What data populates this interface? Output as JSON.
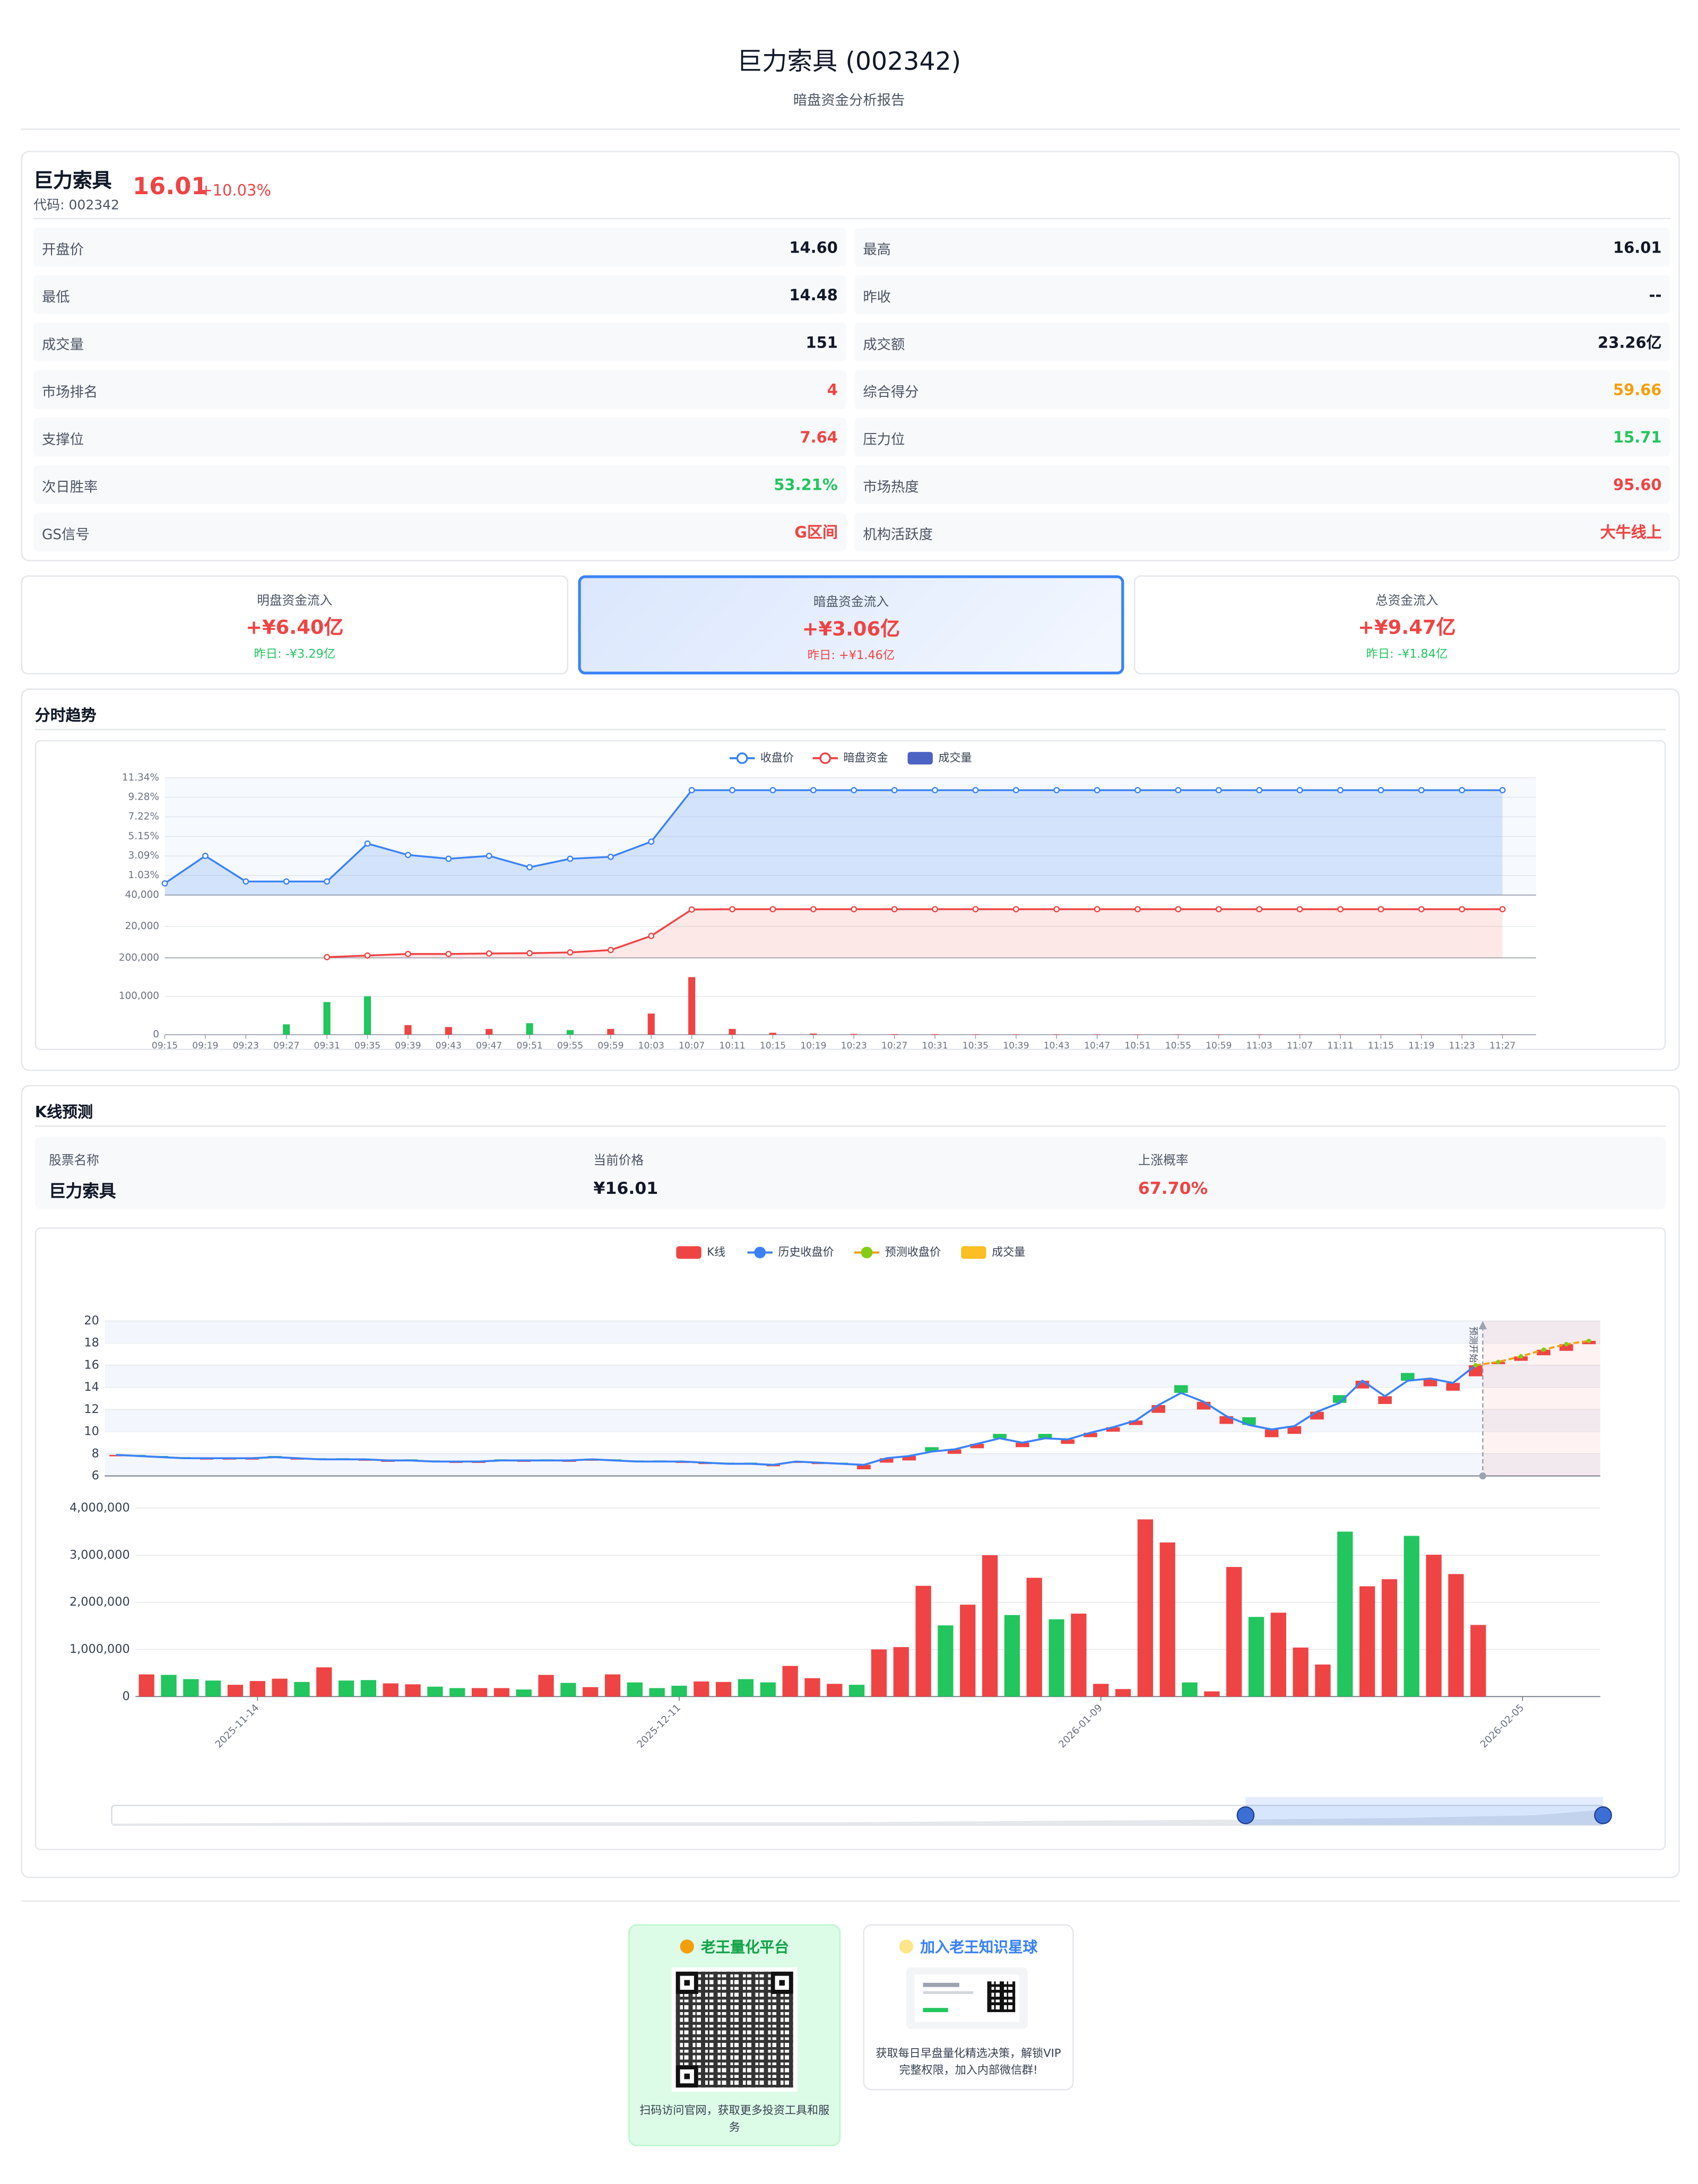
{
  "header": {
    "title": "巨力索具 (002342)",
    "subtitle": "暗盘资金分析报告"
  },
  "quote": {
    "name": "巨力索具",
    "code": "代码: 002342",
    "price": "16.01",
    "change": "+10.03%",
    "color": "#ef4444"
  },
  "metrics": [
    {
      "label": "开盘价",
      "value": "14.60"
    },
    {
      "label": "最高",
      "value": "16.01"
    },
    {
      "label": "最低",
      "value": "14.48"
    },
    {
      "label": "昨收",
      "value": "--"
    },
    {
      "label": "成交量",
      "value": "151"
    },
    {
      "label": "成交额",
      "value": "23.26亿"
    },
    {
      "label": "市场排名",
      "value": "4",
      "color": "#ef4444"
    },
    {
      "label": "综合得分",
      "value": "59.66",
      "color": "#f59e0b"
    },
    {
      "label": "支撑位",
      "value": "7.64",
      "color": "#ef4444"
    },
    {
      "label": "压力位",
      "value": "15.71",
      "color": "#22c55e"
    },
    {
      "label": "次日胜率",
      "value": "53.21%",
      "color": "#22c55e"
    },
    {
      "label": "市场热度",
      "value": "95.60",
      "color": "#ef4444"
    },
    {
      "label": "GS信号",
      "value": "G区间",
      "color": "#ef4444"
    },
    {
      "label": "机构活跃度",
      "value": "大牛线上",
      "color": "#ef4444"
    }
  ],
  "flows": [
    {
      "title": "明盘资金流入",
      "value": "+¥6.40亿",
      "previous": "昨日: -¥3.29亿",
      "color": "#ef4444",
      "previous_color": "#22c55e",
      "highlighted": false
    },
    {
      "title": "暗盘资金流入",
      "value": "+¥3.06亿",
      "previous": "昨日: +¥1.46亿",
      "color": "#ef4444",
      "previous_color": "#ef4444",
      "highlighted": true
    },
    {
      "title": "总资金流入",
      "value": "+¥9.47亿",
      "previous": "昨日: -¥1.84亿",
      "color": "#ef4444",
      "previous_color": "#22c55e",
      "highlighted": false
    }
  ],
  "kline_info": [
    {
      "label": "股票名称",
      "value": "巨力索具"
    },
    {
      "label": "当前价格",
      "value": "¥16.01"
    },
    {
      "label": "上涨概率",
      "value": "67.70%",
      "color": "#ef4444"
    }
  ],
  "chart_data": [
    {
      "type": "line",
      "title": "分时趋势",
      "categories": [
        "09:15",
        "09:19",
        "09:23",
        "09:27",
        "09:31",
        "09:35",
        "09:39",
        "09:43",
        "09:47",
        "09:51",
        "09:55",
        "09:59",
        "10:03",
        "10:07",
        "10:11",
        "10:15",
        "10:19",
        "10:23",
        "10:27",
        "10:31",
        "10:35",
        "10:39",
        "10:43",
        "10:47",
        "10:51",
        "10:55",
        "10:59",
        "11:03",
        "11:07",
        "11:11",
        "11:15",
        "11:19",
        "11:23",
        "11:27"
      ],
      "ylim": [
        -1.03,
        11.34
      ],
      "yticks": [
        {
          "value": 1.03,
          "label": "1.03%"
        },
        {
          "value": 3.09,
          "label": "3.09%"
        },
        {
          "value": 5.15,
          "label": "5.15%"
        },
        {
          "value": 7.22,
          "label": "7.22%"
        },
        {
          "value": 9.28,
          "label": "9.28%"
        },
        {
          "value": 11.34,
          "label": "11.34%"
        }
      ],
      "y2lim": [
        0,
        40000
      ],
      "y2ticks": [
        {
          "value": 20000,
          "label": "20,000"
        },
        {
          "value": 40000,
          "label": "40,000"
        }
      ],
      "y3lim": [
        0,
        200000
      ],
      "y3ticks": [
        0,
        {
          "value": 100000,
          "label": "100,000"
        },
        {
          "value": 200000,
          "label": "200,000"
        }
      ],
      "series": [
        {
          "name": "收盘价",
          "color": "#3b82f6",
          "values": [
            0.2,
            3.1,
            0.4,
            0.4,
            0.4,
            4.4,
            3.2,
            2.8,
            3.1,
            1.9,
            2.8,
            3.0,
            4.6,
            10.03,
            10.03,
            10.03,
            10.03,
            10.03,
            10.03,
            10.03,
            10.03,
            10.03,
            10.03,
            10.03,
            10.03,
            10.03,
            10.03,
            10.03,
            10.03,
            10.03,
            10.03,
            10.03,
            10.03,
            10.03
          ]
        },
        {
          "name": "暗盘资金",
          "color": "#ef4444",
          "axis": "y2",
          "values": [
            null,
            null,
            null,
            null,
            500,
            1500,
            2500,
            2500,
            2800,
            3000,
            3500,
            5000,
            14000,
            30800,
            31000,
            31000,
            31000,
            31000,
            31000,
            31000,
            31000,
            31000,
            31000,
            31000,
            31000,
            31000,
            31000,
            31000,
            31000,
            31000,
            31000,
            31000,
            31000,
            31000
          ]
        },
        {
          "name": "成交量",
          "color": "#4c63c4",
          "axis": "y3",
          "values": [
            0,
            0,
            0,
            27000,
            85000,
            100000,
            25000,
            20000,
            15000,
            30000,
            12000,
            15000,
            55000,
            150000,
            15000,
            5000,
            3000,
            2000,
            1500,
            1500,
            1000,
            1000,
            1000,
            1000,
            800,
            800,
            800,
            800,
            600,
            600,
            600,
            600,
            500,
            500
          ],
          "bar_colors": [
            "#ef4444",
            "#ef4444",
            "#ef4444",
            "#22c55e",
            "#22c55e",
            "#22c55e",
            "#ef4444",
            "#ef4444",
            "#ef4444",
            "#22c55e",
            "#22c55e",
            "#ef4444",
            "#ef4444",
            "#ef4444",
            "#ef4444",
            "#ef4444",
            "#ef4444",
            "#ef4444",
            "#ef4444",
            "#ef4444",
            "#ef4444",
            "#ef4444",
            "#ef4444",
            "#ef4444",
            "#ef4444",
            "#ef4444",
            "#ef4444",
            "#ef4444",
            "#ef4444",
            "#ef4444",
            "#ef4444",
            "#ef4444",
            "#ef4444",
            "#ef4444"
          ]
        }
      ]
    },
    {
      "type": "candlestick",
      "title": "K线预测",
      "categories": [
        null,
        null,
        null,
        null,
        null,
        "2025-11-14",
        null,
        null,
        null,
        null,
        null,
        null,
        null,
        null,
        null,
        null,
        null,
        null,
        null,
        null,
        null,
        null,
        null,
        null,
        "2025-12-11",
        null,
        null,
        null,
        null,
        null,
        null,
        null,
        null,
        null,
        null,
        null,
        null,
        null,
        null,
        null,
        null,
        null,
        null,
        "2026-01-09",
        null,
        null,
        null,
        null,
        null,
        null,
        null,
        null,
        null,
        null,
        null,
        null,
        null,
        null,
        null,
        null,
        null,
        null,
        "2026-02-05",
        null,
        null,
        null
      ],
      "ylim": [
        6,
        20
      ],
      "yticks": [
        6,
        8,
        10,
        12,
        14,
        16,
        18,
        20
      ],
      "y2lim": [
        0,
        4000000
      ],
      "y2ticks": [
        0,
        {
          "value": 1000000,
          "label": "1,000,000"
        },
        {
          "value": 2000000,
          "label": "2,000,000"
        },
        {
          "value": 3000000,
          "label": "3,000,000"
        },
        {
          "value": 4000000,
          "label": "4,000,000"
        }
      ],
      "annotation": "预测开始",
      "series": [
        {
          "name": "K线",
          "color": "#ef4444",
          "down_color": "#22c55e",
          "open": [
            7.8,
            7.9,
            7.8,
            7.7,
            7.5,
            7.5,
            7.5,
            7.8,
            7.5,
            7.6,
            7.6,
            7.4,
            7.3,
            7.5,
            7.4,
            7.2,
            7.2,
            7.5,
            7.3,
            7.5,
            7.3,
            7.4,
            7.5,
            7.4,
            7.4,
            7.2,
            7.1,
            7.2,
            7.2,
            6.9,
            7.2,
            7.1,
            7.2,
            6.6,
            7.2,
            7.4,
            8.6,
            8.0,
            8.5,
            9.8,
            8.6,
            9.8,
            8.9,
            9.5,
            10.0,
            10.6,
            11.7,
            14.2,
            12.0,
            10.7,
            11.3,
            9.5,
            9.8,
            11.1,
            13.3,
            13.9,
            12.5,
            15.3,
            14.1,
            13.7,
            15.0,
            16.1,
            16.4,
            16.9,
            17.3,
            17.9
          ],
          "close": [
            7.9,
            7.8,
            7.7,
            7.6,
            7.6,
            7.6,
            7.6,
            7.7,
            7.6,
            7.5,
            7.5,
            7.5,
            7.4,
            7.4,
            7.3,
            7.3,
            7.3,
            7.4,
            7.4,
            7.4,
            7.4,
            7.5,
            7.4,
            7.3,
            7.3,
            7.3,
            7.2,
            7.1,
            7.1,
            7.0,
            7.3,
            7.2,
            7.1,
            7.0,
            7.6,
            7.8,
            8.2,
            8.4,
            8.9,
            9.4,
            9.0,
            9.4,
            9.3,
            9.9,
            10.4,
            11.0,
            12.4,
            13.5,
            12.7,
            11.4,
            10.6,
            10.2,
            10.5,
            11.8,
            12.6,
            14.6,
            13.2,
            14.6,
            14.8,
            14.4,
            16.0,
            16.3,
            16.8,
            17.4,
            17.9,
            18.2
          ]
        },
        {
          "name": "历史收盘价",
          "color": "#3b82f6",
          "values": [
            7.9,
            7.8,
            7.7,
            7.6,
            7.6,
            7.6,
            7.6,
            7.7,
            7.6,
            7.5,
            7.5,
            7.5,
            7.4,
            7.4,
            7.3,
            7.3,
            7.3,
            7.4,
            7.4,
            7.4,
            7.4,
            7.5,
            7.4,
            7.3,
            7.3,
            7.3,
            7.2,
            7.1,
            7.1,
            7.0,
            7.3,
            7.2,
            7.1,
            7.0,
            7.6,
            7.8,
            8.2,
            8.4,
            8.9,
            9.4,
            9.0,
            9.4,
            9.3,
            9.9,
            10.4,
            11.0,
            12.4,
            13.5,
            12.7,
            11.4,
            10.6,
            10.2,
            10.5,
            11.8,
            12.6,
            14.6,
            13.2,
            14.6,
            14.8,
            14.4,
            16.0,
            null,
            null,
            null,
            null,
            null
          ]
        },
        {
          "name": "预测收盘价",
          "color": "#f59e0b",
          "marker_color": "#84cc16",
          "values": [
            null,
            null,
            null,
            null,
            null,
            null,
            null,
            null,
            null,
            null,
            null,
            null,
            null,
            null,
            null,
            null,
            null,
            null,
            null,
            null,
            null,
            null,
            null,
            null,
            null,
            null,
            null,
            null,
            null,
            null,
            null,
            null,
            null,
            null,
            null,
            null,
            null,
            null,
            null,
            null,
            null,
            null,
            null,
            null,
            null,
            null,
            null,
            null,
            null,
            null,
            null,
            null,
            null,
            null,
            null,
            null,
            null,
            null,
            null,
            null,
            16.0,
            16.3,
            16.8,
            17.4,
            17.9,
            18.2
          ]
        },
        {
          "name": "成交量",
          "color": "#fbbf24",
          "axis": "y2",
          "values": [
            470000,
            460000,
            370000,
            340000,
            250000,
            330000,
            380000,
            310000,
            620000,
            340000,
            350000,
            280000,
            260000,
            210000,
            180000,
            180000,
            180000,
            150000,
            460000,
            290000,
            200000,
            470000,
            300000,
            180000,
            230000,
            320000,
            310000,
            370000,
            300000,
            650000,
            390000,
            270000,
            250000,
            1000000,
            1050000,
            2350000,
            1510000,
            1950000,
            3000000,
            1730000,
            2520000,
            1640000,
            1760000,
            270000,
            160000,
            3760000,
            3270000,
            300000,
            110000,
            2750000,
            1690000,
            1780000,
            1040000,
            680000,
            3500000,
            2340000,
            2490000,
            3410000,
            3010000,
            2600000,
            1520000,
            null,
            null,
            null,
            null,
            null
          ]
        }
      ]
    }
  ],
  "footer": [
    {
      "title": "老王量化平台",
      "text": "扫码访问官网，获取更多投资工具和服务"
    },
    {
      "title": "加入老王知识星球",
      "text": "获取每日早盘量化精选决策，解锁VIP完整权限，加入内部微信群!"
    }
  ]
}
